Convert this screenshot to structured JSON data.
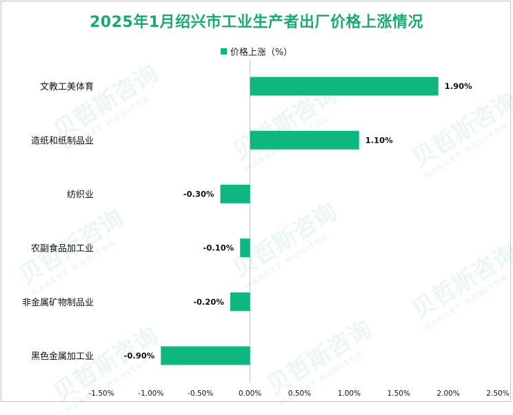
{
  "watermark": {
    "brand": "贝哲斯咨询",
    "sub": "MARKET MONITOR"
  },
  "chart_data": {
    "type": "bar",
    "orientation": "horizontal",
    "title": "2025年1月绍兴市工业生产者出厂价格上涨情况",
    "legend": {
      "label": "价格上涨（%）",
      "position": "top-center"
    },
    "categories": [
      "文教工美体育",
      "造纸和纸制品业",
      "纺织业",
      "农副食品加工业",
      "非金属矿物制品业",
      "黑色金属加工业"
    ],
    "values": [
      1.9,
      1.1,
      -0.3,
      -0.1,
      -0.2,
      -0.9
    ],
    "data_labels": [
      "1.90%",
      "1.10%",
      "-0.30%",
      "-0.10%",
      "-0.20%",
      "-0.90%"
    ],
    "xlim": [
      -1.5,
      2.5
    ],
    "xticks": [
      -1.5,
      -1.0,
      -0.5,
      0.0,
      0.5,
      1.0,
      1.5,
      2.0,
      2.5
    ],
    "xtick_labels": [
      "-1.50%",
      "-1.00%",
      "-0.50%",
      "0.00%",
      "0.50%",
      "1.00%",
      "1.50%",
      "2.00%",
      "2.50%"
    ],
    "color": "#10b67f",
    "grid": false
  }
}
